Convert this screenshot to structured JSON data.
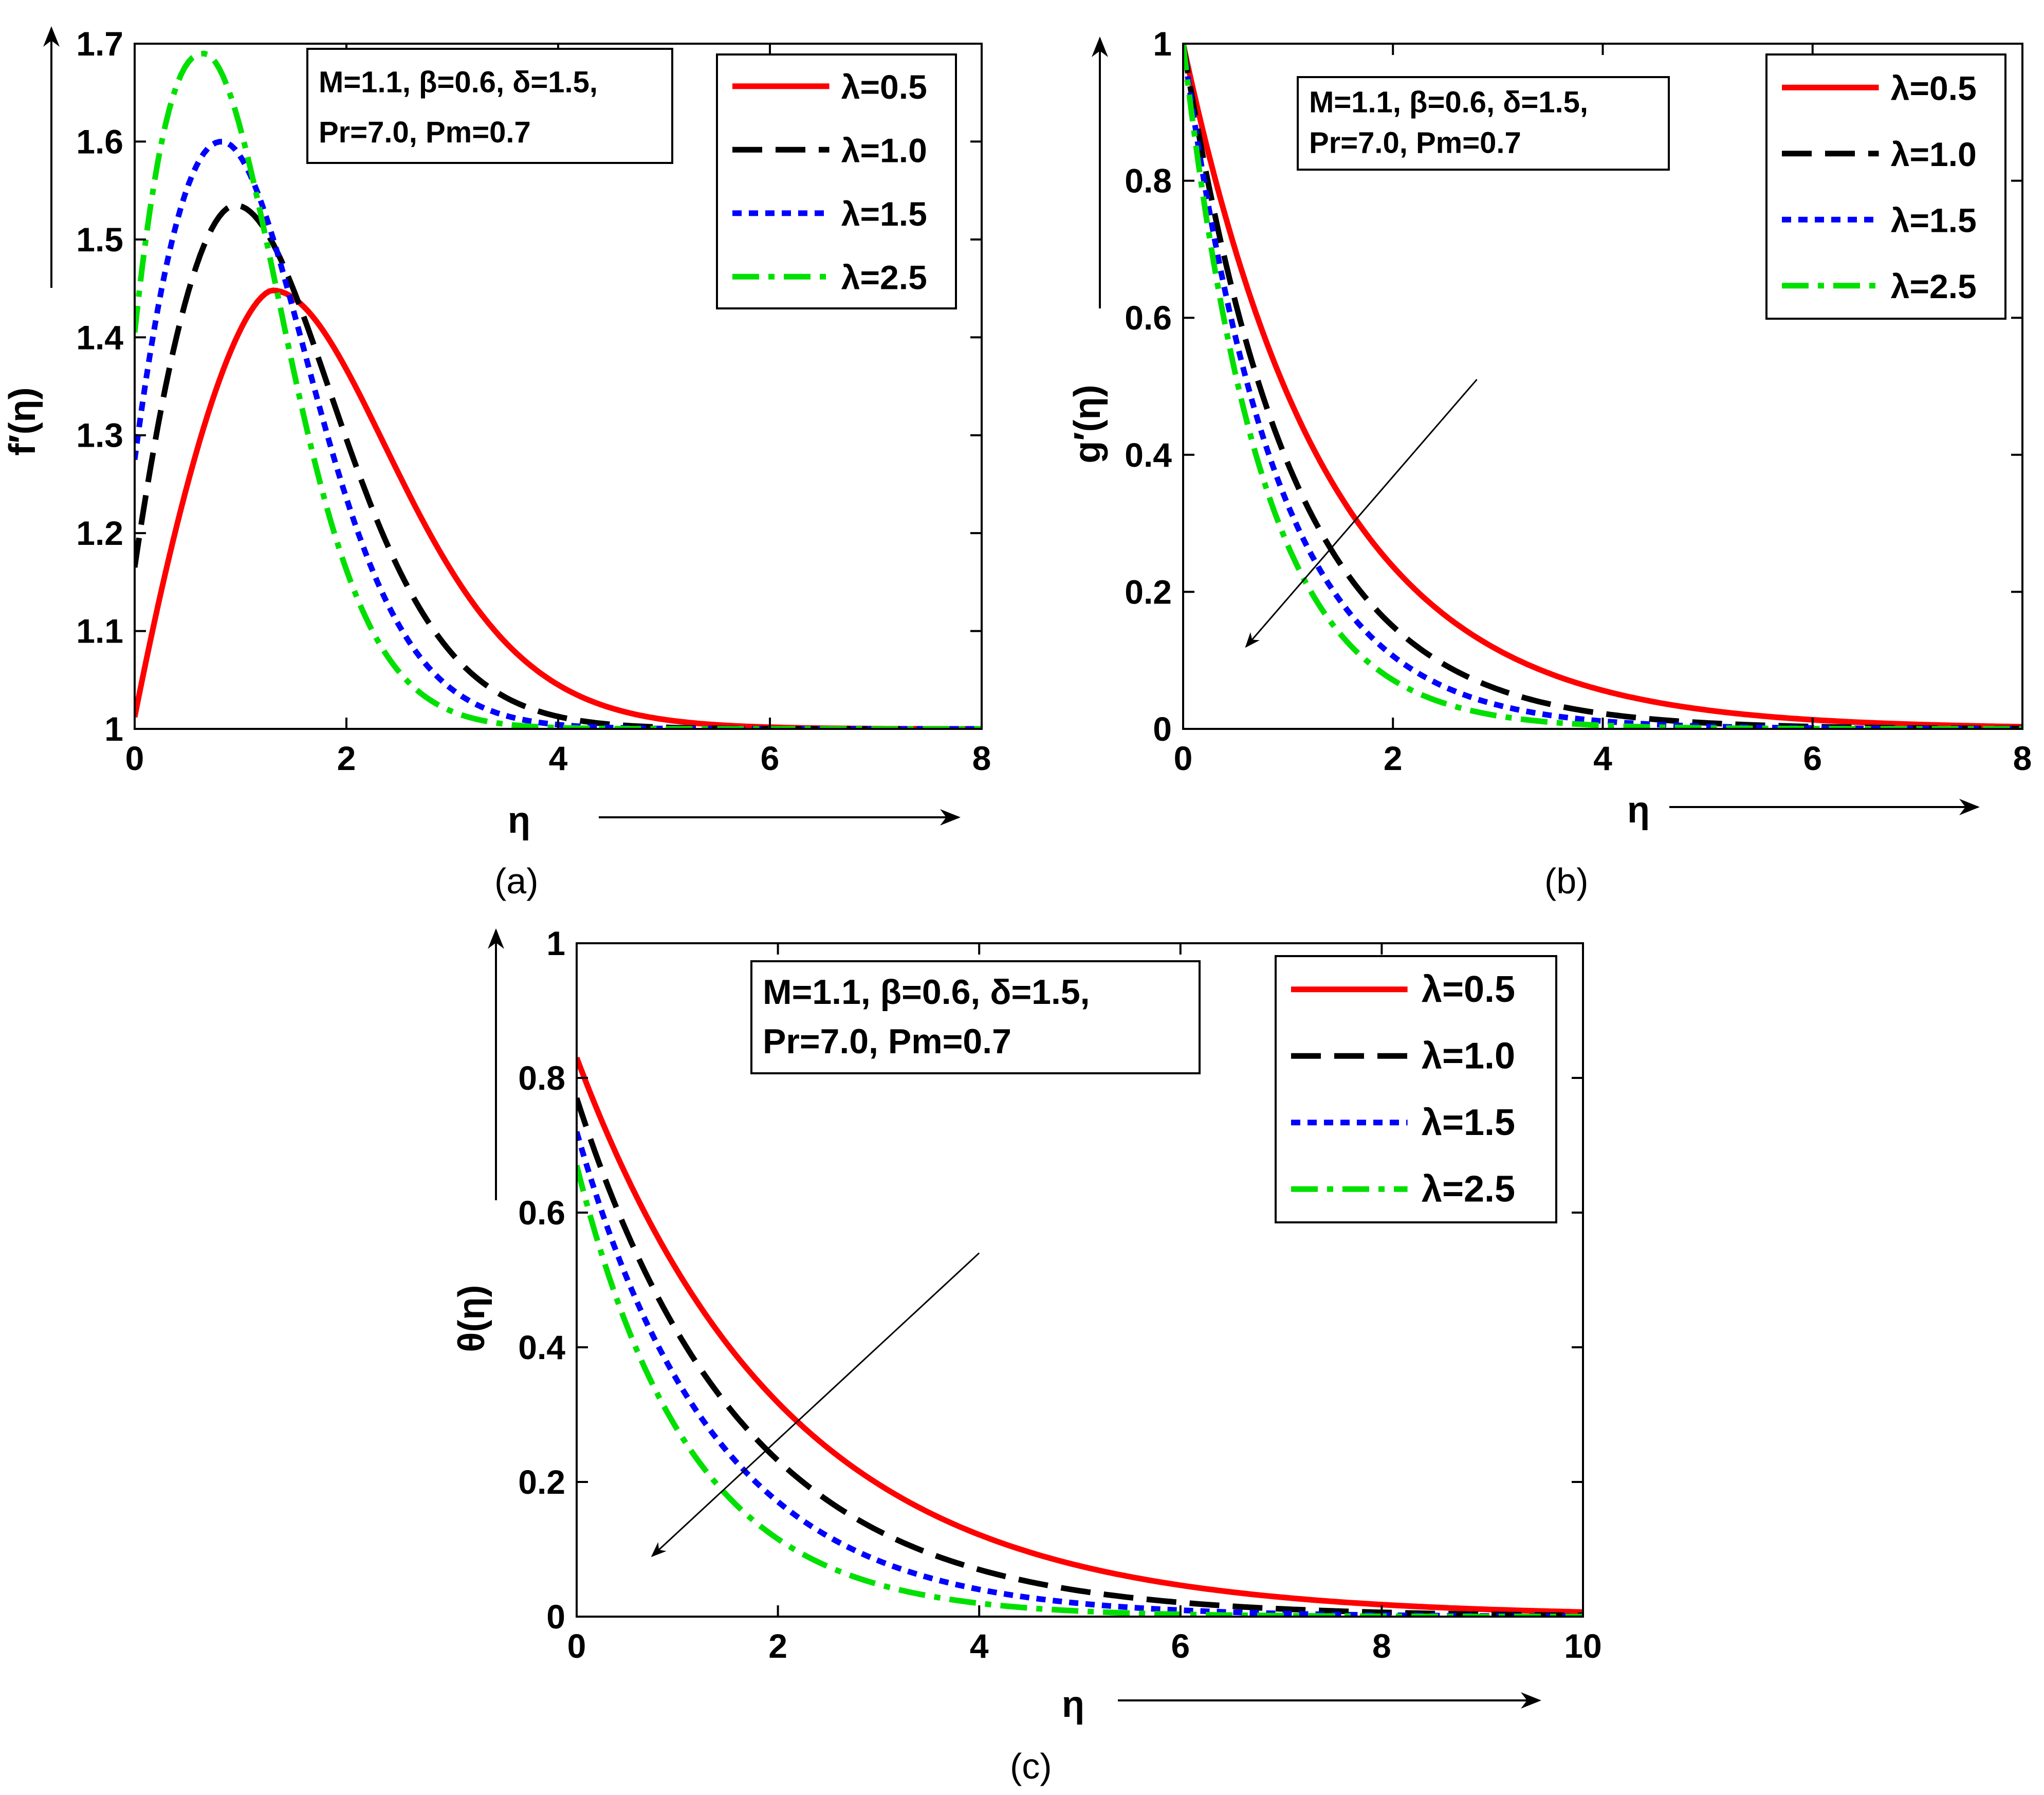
{
  "chart_data": [
    {
      "type": "line",
      "panel_label": "(a)",
      "panel_letter": "a",
      "ylabel": "f′(η)",
      "xlabel": "η",
      "xlim": [
        0,
        8
      ],
      "ylim": [
        1,
        1.7
      ],
      "xticks": [
        0,
        2,
        4,
        6,
        8
      ],
      "yticks": [
        1,
        1.1,
        1.2,
        1.3,
        1.4,
        1.5,
        1.6,
        1.7
      ],
      "ytick_labels": [
        "1",
        "1.1",
        "1.2",
        "1.3",
        "1.4",
        "1.5",
        "1.6",
        "1.7"
      ],
      "xtick_labels": [
        "0",
        "2",
        "4",
        "6",
        "8"
      ],
      "params_line1": "M=1.1, β=0.6, δ=1.5,",
      "params_line2": "Pr=7.0, Pm=0.7",
      "legend_position": "top-right",
      "trend_arrow": false,
      "series": [
        {
          "name": "λ=0.5",
          "color": "#ff0000",
          "dash": "solid",
          "model": "peak",
          "params": [
            1.012,
            1.448,
            1.3,
            0.63,
            1.42
          ]
        },
        {
          "name": "λ=1.0",
          "color": "#000000",
          "dash": "dash",
          "model": "peak",
          "params": [
            1.165,
            1.535,
            0.95,
            0.88,
            1.19
          ]
        },
        {
          "name": "λ=1.5",
          "color": "#0000ff",
          "dash": "dot",
          "model": "peak",
          "params": [
            1.275,
            1.6,
            0.82,
            1.07,
            1.04
          ]
        },
        {
          "name": "λ=2.5",
          "color": "#00e000",
          "dash": "dashdot",
          "model": "peak",
          "params": [
            1.405,
            1.69,
            0.65,
            1.3,
            0.93
          ]
        }
      ]
    },
    {
      "type": "line",
      "panel_label": "(b)",
      "panel_letter": "b",
      "ylabel": "g′(η)",
      "xlabel": "η",
      "xlim": [
        0,
        8
      ],
      "ylim": [
        0,
        1
      ],
      "xticks": [
        0,
        2,
        4,
        6,
        8
      ],
      "yticks": [
        0,
        0.2,
        0.4,
        0.6,
        0.8,
        1
      ],
      "ytick_labels": [
        "0",
        "0.2",
        "0.4",
        "0.6",
        "0.8",
        "1"
      ],
      "xtick_labels": [
        "0",
        "2",
        "4",
        "6",
        "8"
      ],
      "params_line1": "M=1.1, β=0.6, δ=1.5,",
      "params_line2": "Pr=7.0, Pm=0.7",
      "legend_position": "top-right",
      "trend_arrow": true,
      "arrow_from": [
        2.8,
        0.51
      ],
      "arrow_to": [
        0.6,
        0.12
      ],
      "series": [
        {
          "name": "λ=0.5",
          "color": "#ff0000",
          "dash": "solid",
          "model": "exp",
          "params": [
            1.0,
            0.72
          ]
        },
        {
          "name": "λ=1.0",
          "color": "#000000",
          "dash": "dash",
          "model": "exp",
          "params": [
            1.0,
            0.95
          ]
        },
        {
          "name": "λ=1.5",
          "color": "#0000ff",
          "dash": "dot",
          "model": "exp",
          "params": [
            1.0,
            1.12
          ]
        },
        {
          "name": "λ=2.5",
          "color": "#00e000",
          "dash": "dashdot",
          "model": "exp",
          "params": [
            1.0,
            1.32
          ]
        }
      ]
    },
    {
      "type": "line",
      "panel_label": "(c)",
      "panel_letter": "c",
      "ylabel": "θ(η)",
      "xlabel": "η",
      "xlim": [
        0,
        10
      ],
      "ylim": [
        0,
        1
      ],
      "xticks": [
        0,
        2,
        4,
        6,
        8,
        10
      ],
      "yticks": [
        0,
        0.2,
        0.4,
        0.6,
        0.8,
        1
      ],
      "ytick_labels": [
        "0",
        "0.2",
        "0.4",
        "0.6",
        "0.8",
        "1"
      ],
      "xtick_labels": [
        "0",
        "2",
        "4",
        "6",
        "8",
        "10"
      ],
      "params_line1": "M=1.1, β=0.6, δ=1.5,",
      "params_line2": "Pr=7.0, Pm=0.7",
      "legend_position": "top-right",
      "trend_arrow": true,
      "arrow_from": [
        4.0,
        0.54
      ],
      "arrow_to": [
        0.75,
        0.09
      ],
      "series": [
        {
          "name": "λ=0.5",
          "color": "#ff0000",
          "dash": "solid",
          "model": "exp",
          "params": [
            0.83,
            0.48
          ]
        },
        {
          "name": "λ=1.0",
          "color": "#000000",
          "dash": "dash",
          "model": "exp",
          "params": [
            0.77,
            0.6
          ]
        },
        {
          "name": "λ=1.5",
          "color": "#0000ff",
          "dash": "dot",
          "model": "exp",
          "params": [
            0.72,
            0.72
          ]
        },
        {
          "name": "λ=2.5",
          "color": "#00e000",
          "dash": "dashdot",
          "model": "exp",
          "params": [
            0.67,
            0.88
          ]
        }
      ]
    }
  ]
}
